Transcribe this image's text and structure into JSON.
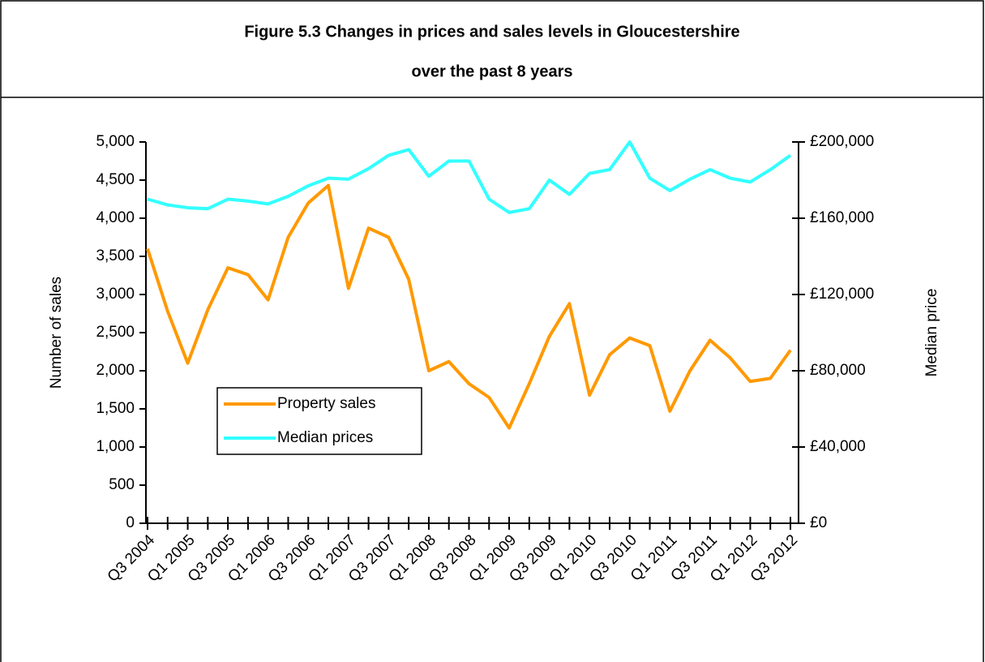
{
  "chart_data": {
    "type": "line",
    "title_lines": [
      "Figure 5.3 Changes in prices and sales levels in Gloucestershire",
      "over the past 8 years"
    ],
    "ylabel": "Number of sales",
    "y2label": "Median price",
    "categories": [
      "Q3 2004",
      null,
      "Q1 2005",
      null,
      "Q3 2005",
      null,
      "Q1 2006",
      null,
      "Q3 2006",
      null,
      "Q1 2007",
      null,
      "Q3 2007",
      null,
      "Q1 2008",
      null,
      "Q3 2008",
      null,
      "Q1 2009",
      null,
      "Q3 2009",
      null,
      "Q1 2010",
      null,
      "Q3 2010",
      null,
      "Q1 2011",
      null,
      "Q3 2011",
      null,
      "Q1 2012",
      null,
      "Q3 2012"
    ],
    "series": [
      {
        "name": "Property sales",
        "color": "#ff9900",
        "values": [
          3600,
          2780,
          2100,
          2800,
          3350,
          3260,
          2930,
          3750,
          4200,
          4430,
          3080,
          3870,
          3750,
          3200,
          2000,
          2120,
          1830,
          1650,
          1250,
          1830,
          2450,
          2880,
          1680,
          2210,
          2430,
          2330,
          1470,
          2000,
          2400,
          2170,
          1860,
          1900,
          2270
        ]
      },
      {
        "name": "Median prices",
        "color": "#33ffff",
        "axis": "y2",
        "values": [
          170000,
          167000,
          165500,
          165000,
          170000,
          169000,
          167500,
          171500,
          177000,
          181000,
          180500,
          186000,
          193000,
          196000,
          182000,
          190000,
          190000,
          170000,
          163000,
          165000,
          180000,
          172500,
          183500,
          185500,
          200000,
          181000,
          174500,
          180500,
          185500,
          181000,
          179000,
          185500,
          193000
        ]
      }
    ],
    "ylim": [
      0,
      5000
    ],
    "yticks": [
      0,
      500,
      {
        "value": 1000,
        "label": "1,000"
      },
      {
        "value": 1500,
        "label": "1,500"
      },
      {
        "value": 2000,
        "label": "2,000"
      },
      {
        "value": 2500,
        "label": "2,500"
      },
      {
        "value": 3000,
        "label": "3,000"
      },
      {
        "value": 3500,
        "label": "3,500"
      },
      {
        "value": 4000,
        "label": "4,000"
      },
      {
        "value": 4500,
        "label": "4,500"
      },
      {
        "value": 5000,
        "label": "5,000"
      }
    ],
    "y2lim": [
      0,
      200000
    ],
    "y2ticks": [
      {
        "value": 0,
        "label": "£0"
      },
      {
        "value": 40000,
        "label": "£40,000"
      },
      {
        "value": 80000,
        "label": "£80,000"
      },
      {
        "value": 120000,
        "label": "£120,000"
      },
      {
        "value": 160000,
        "label": "£160,000"
      },
      {
        "value": 200000,
        "label": "£200,000"
      }
    ]
  }
}
